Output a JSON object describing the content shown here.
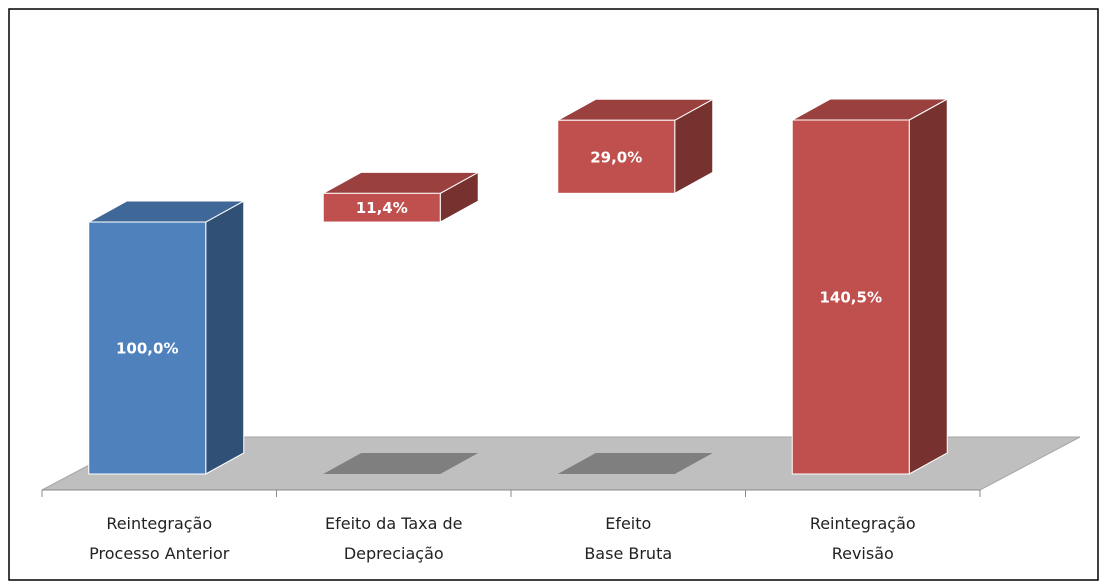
{
  "chart_data": {
    "type": "waterfall",
    "categories": [
      "Reintegração\nProcesso Anterior",
      "Efeito da Taxa de\nDepreciação",
      "Efeito\nBase Bruta",
      "Reintegração\nRevisão"
    ],
    "values": [
      100.0,
      11.4,
      29.0,
      140.5
    ],
    "value_labels": [
      "100,0%",
      "11,4%",
      "29,0%",
      "140,5%"
    ],
    "is_total": [
      true,
      false,
      false,
      true
    ],
    "colors": [
      "#4f81bd",
      "#c0504d",
      "#c0504d",
      "#c0504d"
    ]
  }
}
